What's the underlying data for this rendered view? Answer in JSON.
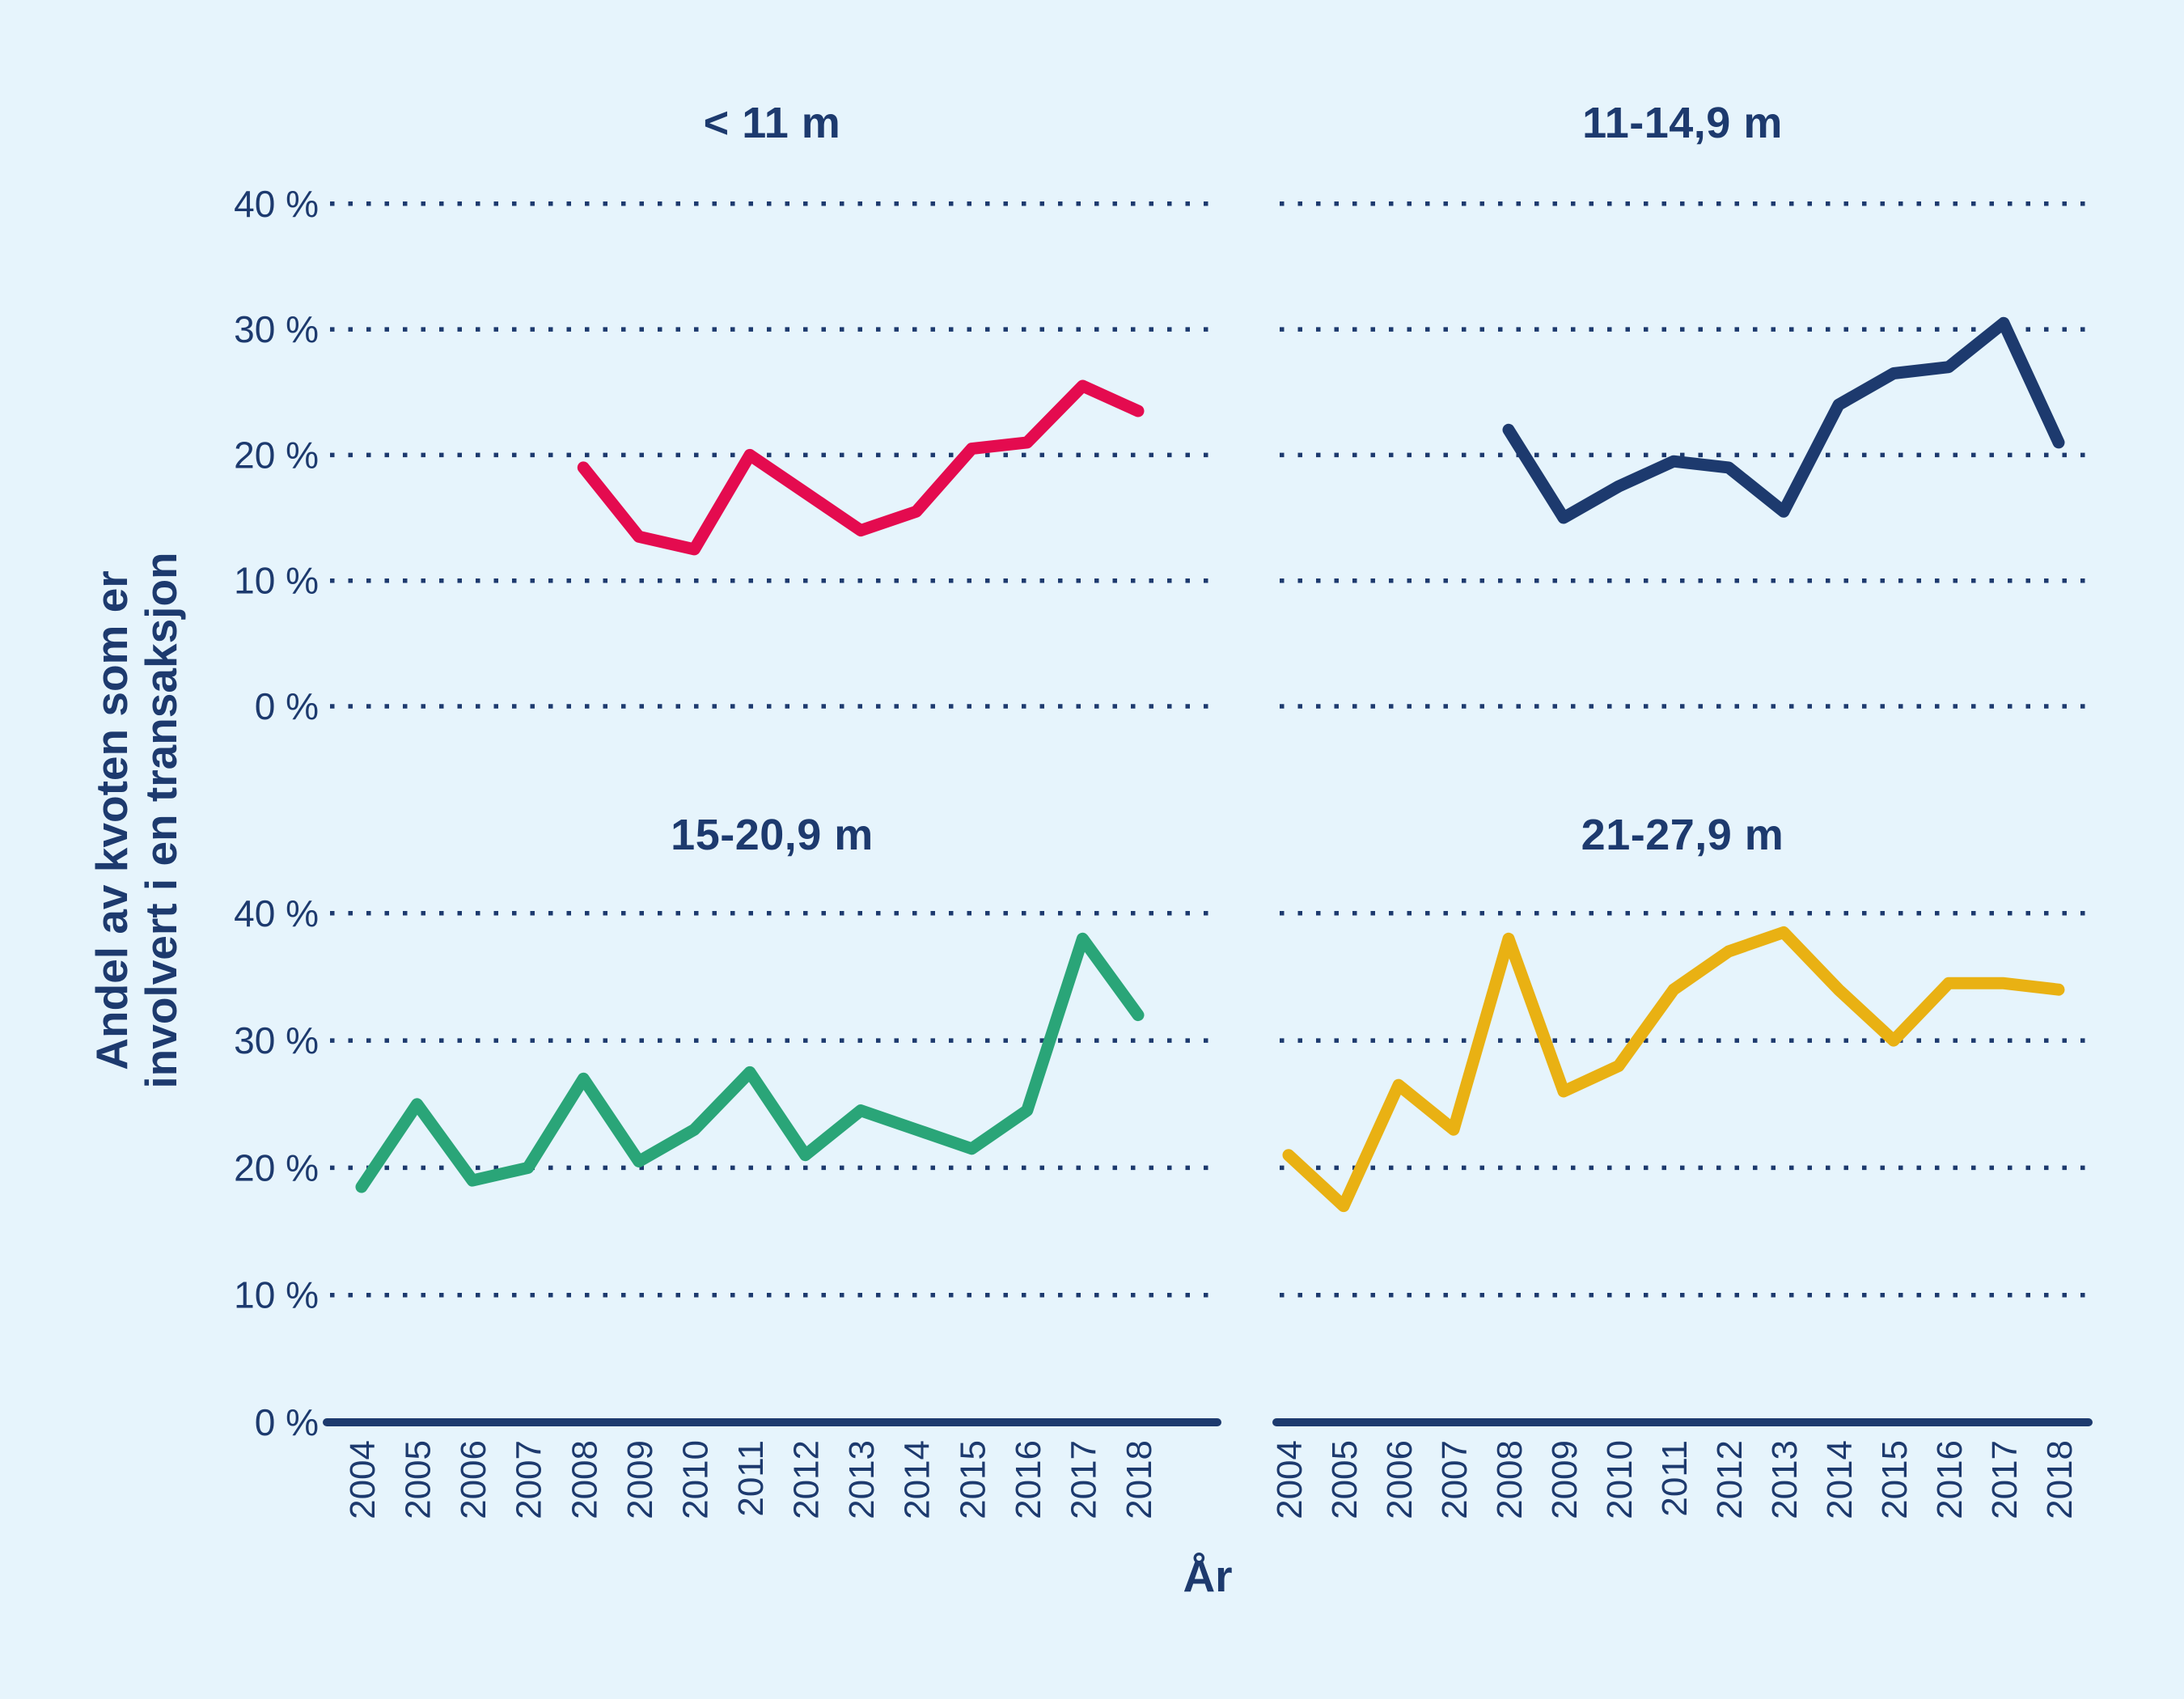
{
  "figure": {
    "background_color": "#e6f4fc",
    "text_color": "#1d3a6e",
    "grid_color": "#1d3a6e"
  },
  "axes": {
    "ylabel_line1": "Andel av kvoten som er",
    "ylabel_line2": "involvert i en transaksjon",
    "xlabel": "År",
    "yticks": [
      0,
      10,
      20,
      30,
      40
    ],
    "ytick_labels": [
      "0 %",
      "10 %",
      "20 %",
      "30 %",
      "40 %"
    ],
    "years": [
      2004,
      2005,
      2006,
      2007,
      2008,
      2009,
      2010,
      2011,
      2012,
      2013,
      2014,
      2015,
      2016,
      2017,
      2018
    ]
  },
  "chart_data": [
    {
      "type": "line",
      "id": "panel-lt-11m",
      "title": "< 11 m",
      "color": "#e40b4f",
      "ylim": [
        0,
        40
      ],
      "x": [
        2008,
        2009,
        2010,
        2011,
        2012,
        2013,
        2014,
        2015,
        2016,
        2017,
        2018
      ],
      "values": [
        19,
        13.5,
        12.5,
        20,
        17,
        14,
        15.5,
        20.5,
        21,
        25.5,
        23.5
      ]
    },
    {
      "type": "line",
      "id": "panel-11-14-9m",
      "title": "11-14,9 m",
      "color": "#1d3a6e",
      "ylim": [
        0,
        40
      ],
      "x": [
        2008,
        2009,
        2010,
        2011,
        2012,
        2013,
        2014,
        2015,
        2016,
        2017,
        2018
      ],
      "values": [
        22,
        15,
        17.5,
        19.5,
        19,
        15.5,
        24,
        26.5,
        27,
        30.5,
        21
      ]
    },
    {
      "type": "line",
      "id": "panel-15-20-9m",
      "title": "15-20,9 m",
      "color": "#2aa578",
      "ylim": [
        0,
        40
      ],
      "x": [
        2004,
        2005,
        2006,
        2007,
        2008,
        2009,
        2010,
        2011,
        2012,
        2013,
        2014,
        2015,
        2016,
        2017,
        2018
      ],
      "values": [
        18.5,
        25,
        19,
        20,
        27,
        20.5,
        23,
        27.5,
        21,
        24.5,
        23,
        21.5,
        24.5,
        38,
        32
      ]
    },
    {
      "type": "line",
      "id": "panel-21-27-9m",
      "title": "21-27,9 m",
      "color": "#e9b113",
      "ylim": [
        0,
        40
      ],
      "x": [
        2004,
        2005,
        2006,
        2007,
        2008,
        2009,
        2010,
        2011,
        2012,
        2013,
        2014,
        2015,
        2016,
        2017,
        2018
      ],
      "values": [
        21,
        17,
        26.5,
        23,
        38,
        26,
        28,
        34,
        37,
        38.5,
        34,
        30,
        34.5,
        34.5,
        34
      ]
    }
  ]
}
